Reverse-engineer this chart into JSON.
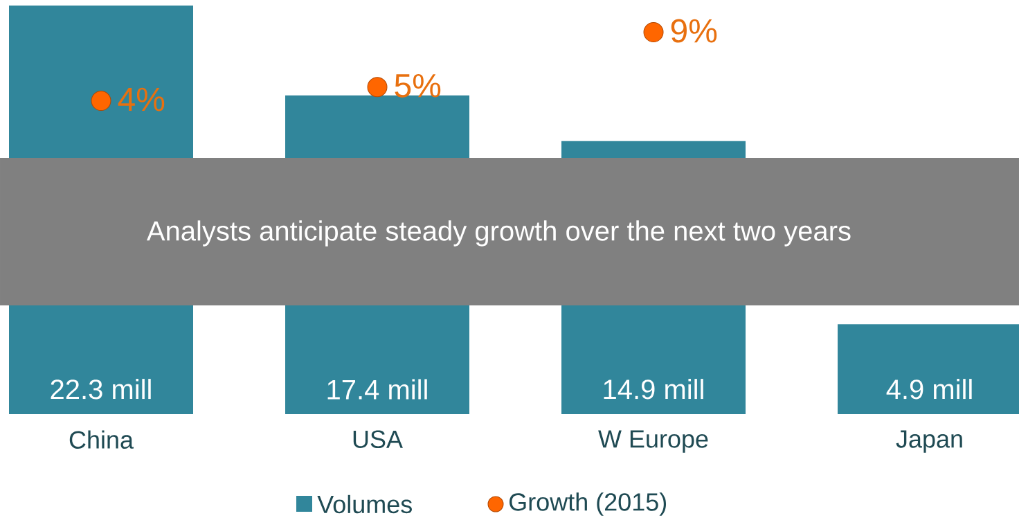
{
  "chart_data": {
    "type": "bar",
    "categories": [
      "China",
      "USA",
      "W Europe",
      "Japan"
    ],
    "series": [
      {
        "name": "Volumes",
        "color": "#31869b",
        "values": [
          22.3,
          17.4,
          14.9,
          4.9
        ],
        "value_labels": [
          "22.3 mill",
          "17.4 mill",
          "14.9 mill",
          "4.9 mill"
        ]
      },
      {
        "name": "Growth  (2015)",
        "type": "scatter",
        "axis": "y2",
        "color": "#ff6600",
        "values": [
          4,
          5,
          9,
          null
        ],
        "value_labels": [
          "4%",
          "5%",
          "9%",
          null
        ]
      }
    ],
    "ylim": [
      0,
      22.3
    ],
    "tick_labels": "x",
    "marker": "circle",
    "legend": "bottom",
    "annotations": [
      "Analysts anticipate steady growth over the next two years"
    ]
  }
}
